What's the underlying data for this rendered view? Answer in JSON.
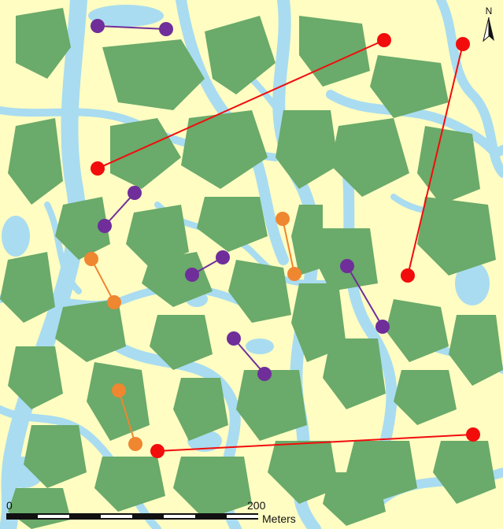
{
  "map": {
    "colors": {
      "land": "#fffdc2",
      "water": "#a9dcf0",
      "vegetation": "#6aaa6a",
      "pair_red": "#f20c0c",
      "pair_purple": "#6f2e9a",
      "pair_orange": "#ef8630"
    },
    "north_arrow": {
      "label": "N",
      "icon": "north-arrow-icon"
    },
    "scale_bar": {
      "start_label": "0",
      "mid_label": "200",
      "unit_label": "Meters",
      "icon": "scale-bar-icon"
    },
    "point_pairs": [
      {
        "category": "red"
      },
      {
        "category": "red"
      },
      {
        "category": "red"
      },
      {
        "category": "purple"
      },
      {
        "category": "purple"
      },
      {
        "category": "purple"
      },
      {
        "category": "purple"
      },
      {
        "category": "purple"
      },
      {
        "category": "orange"
      },
      {
        "category": "orange"
      },
      {
        "category": "orange"
      }
    ]
  }
}
